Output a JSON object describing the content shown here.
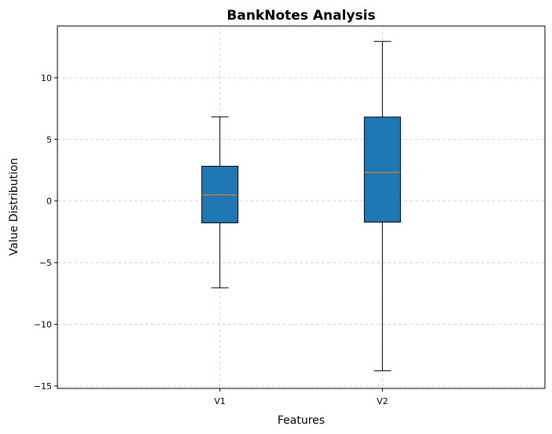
{
  "chart_data": {
    "type": "boxplot",
    "title": "BankNotes Analysis",
    "xlabel": "Features",
    "ylabel": "Value Distribution",
    "categories": [
      "V1",
      "V2"
    ],
    "boxes": [
      {
        "name": "V1",
        "whisker_low": -7.04,
        "q1": -1.77,
        "median": 0.5,
        "q3": 2.82,
        "whisker_high": 6.82
      },
      {
        "name": "V2",
        "whisker_low": -13.77,
        "q1": -1.71,
        "median": 2.32,
        "q3": 6.81,
        "whisker_high": 12.95
      }
    ],
    "ylim": [
      -15.2,
      14.2
    ],
    "yticks": [
      -15,
      -10,
      -5,
      0,
      5,
      10
    ],
    "ytick_labels": [
      "−15",
      "−10",
      "−5",
      "0",
      "5",
      "10"
    ],
    "grid": true,
    "colors": {
      "box_fill": "#1f77b4",
      "median": "#ff7f0e",
      "grid": "#cccccc"
    }
  }
}
